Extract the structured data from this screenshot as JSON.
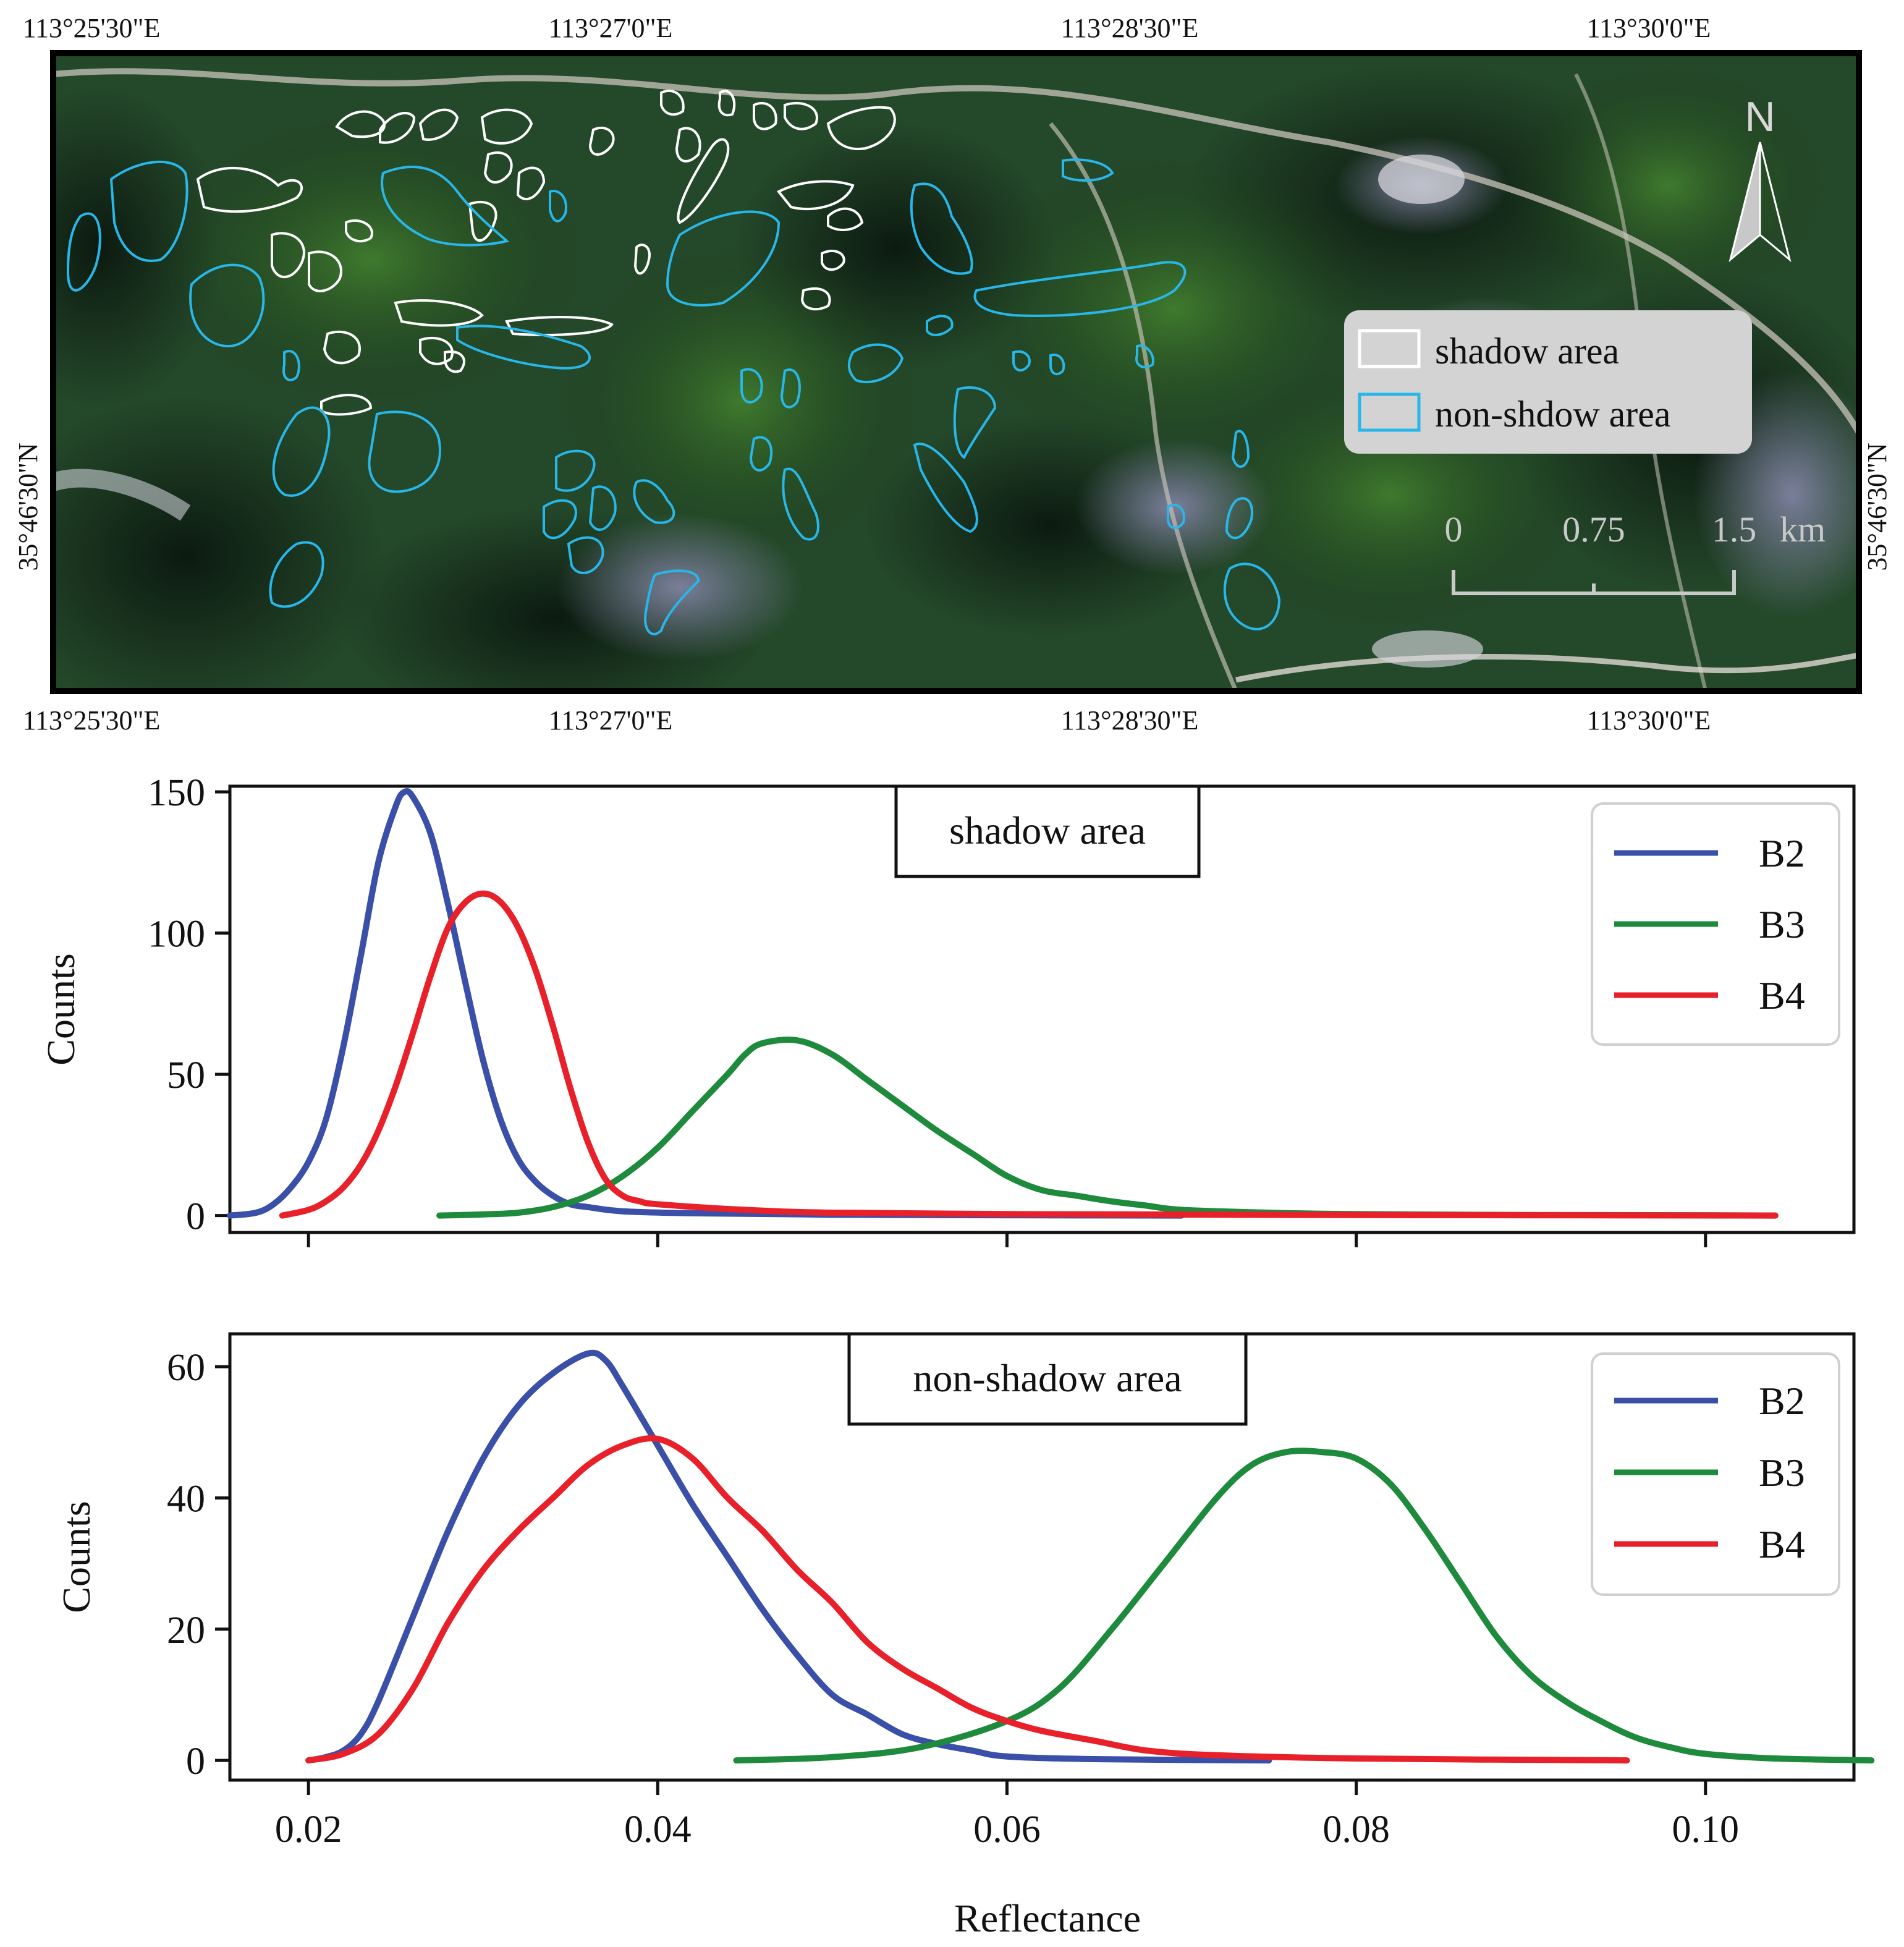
{
  "map": {
    "top_lon_labels": [
      "113°25'30\"E",
      "113°27'0\"E",
      "113°28'30\"E",
      "113°30'0\"E"
    ],
    "bottom_lon_labels": [
      "113°25'30\"E",
      "113°27'0\"E",
      "113°28'30\"E",
      "113°30'0\"E"
    ],
    "lat_label_left": "35°46'30\"N",
    "lat_label_right": "35°46'30\"N",
    "north_arrow_label": "N",
    "legend": [
      {
        "label": "shadow area",
        "color": "#ffffff"
      },
      {
        "label": "non-shdow area",
        "color": "#29b6e8"
      }
    ],
    "scalebar": {
      "labels": [
        "0",
        "0.75",
        "1.5"
      ],
      "unit": "km"
    }
  },
  "colors": {
    "B2": "#3a4fa8",
    "B3": "#1e8a3c",
    "B4": "#e8202a"
  },
  "chart_data": [
    {
      "type": "line",
      "title": "shadow area",
      "xlabel": "",
      "ylabel": "Counts",
      "xlim": [
        0.0155,
        0.1085
      ],
      "ylim": [
        -6,
        152
      ],
      "xticks": [
        0.02,
        0.04,
        0.06,
        0.08,
        0.1
      ],
      "yticks": [
        0,
        50,
        100,
        150
      ],
      "legend_position": "top-right",
      "series": [
        {
          "name": "B2",
          "color": "#3a4fa8",
          "points": [
            [
              0.0155,
              0
            ],
            [
              0.017,
              1
            ],
            [
              0.018,
              4
            ],
            [
              0.019,
              10
            ],
            [
              0.02,
              19
            ],
            [
              0.021,
              34
            ],
            [
              0.022,
              60
            ],
            [
              0.023,
              92
            ],
            [
              0.024,
              125
            ],
            [
              0.025,
              145
            ],
            [
              0.0255,
              150
            ],
            [
              0.026,
              148
            ],
            [
              0.027,
              135
            ],
            [
              0.028,
              110
            ],
            [
              0.029,
              82
            ],
            [
              0.03,
              55
            ],
            [
              0.031,
              34
            ],
            [
              0.032,
              20
            ],
            [
              0.033,
              12
            ],
            [
              0.034,
              7
            ],
            [
              0.035,
              4
            ],
            [
              0.036,
              3
            ],
            [
              0.038,
              1.5
            ],
            [
              0.042,
              0.8
            ],
            [
              0.05,
              0.3
            ],
            [
              0.06,
              0.1
            ],
            [
              0.07,
              0
            ]
          ]
        },
        {
          "name": "B3",
          "color": "#1e8a3c",
          "points": [
            [
              0.0275,
              0
            ],
            [
              0.03,
              0.4
            ],
            [
              0.032,
              1
            ],
            [
              0.034,
              3
            ],
            [
              0.036,
              7
            ],
            [
              0.038,
              14
            ],
            [
              0.04,
              24
            ],
            [
              0.042,
              37
            ],
            [
              0.044,
              50
            ],
            [
              0.045,
              57
            ],
            [
              0.046,
              61
            ],
            [
              0.048,
              62
            ],
            [
              0.05,
              57
            ],
            [
              0.052,
              48
            ],
            [
              0.054,
              39
            ],
            [
              0.056,
              30
            ],
            [
              0.058,
              22
            ],
            [
              0.06,
              14
            ],
            [
              0.062,
              9
            ],
            [
              0.064,
              7
            ],
            [
              0.066,
              5
            ],
            [
              0.068,
              3.5
            ],
            [
              0.07,
              2
            ],
            [
              0.075,
              1
            ],
            [
              0.08,
              0.5
            ],
            [
              0.09,
              0.2
            ],
            [
              0.1,
              0.1
            ],
            [
              0.104,
              0
            ]
          ]
        },
        {
          "name": "B4",
          "color": "#e8202a",
          "points": [
            [
              0.0185,
              0
            ],
            [
              0.02,
              2
            ],
            [
              0.021,
              5
            ],
            [
              0.022,
              10
            ],
            [
              0.023,
              18
            ],
            [
              0.024,
              30
            ],
            [
              0.025,
              46
            ],
            [
              0.026,
              65
            ],
            [
              0.027,
              85
            ],
            [
              0.028,
              102
            ],
            [
              0.029,
              111
            ],
            [
              0.03,
              114
            ],
            [
              0.031,
              111
            ],
            [
              0.032,
              102
            ],
            [
              0.033,
              87
            ],
            [
              0.034,
              67
            ],
            [
              0.035,
              45
            ],
            [
              0.036,
              26
            ],
            [
              0.037,
              13
            ],
            [
              0.038,
              7
            ],
            [
              0.039,
              5
            ],
            [
              0.04,
              4
            ],
            [
              0.045,
              2
            ],
            [
              0.05,
              1
            ],
            [
              0.06,
              0.5
            ],
            [
              0.08,
              0.2
            ],
            [
              0.104,
              0
            ]
          ]
        }
      ]
    },
    {
      "type": "line",
      "title": "non-shadow area",
      "xlabel": "Reflectance",
      "ylabel": "Counts",
      "xlim": [
        0.0155,
        0.1085
      ],
      "ylim": [
        -3,
        65
      ],
      "xticks": [
        0.02,
        0.04,
        0.06,
        0.08,
        0.1
      ],
      "yticks": [
        0,
        20,
        40,
        60
      ],
      "legend_position": "top-right",
      "series": [
        {
          "name": "B2",
          "color": "#3a4fa8",
          "points": [
            [
              0.02,
              0
            ],
            [
              0.021,
              0.5
            ],
            [
              0.022,
              1.5
            ],
            [
              0.023,
              4
            ],
            [
              0.024,
              9
            ],
            [
              0.026,
              22
            ],
            [
              0.028,
              35
            ],
            [
              0.03,
              46
            ],
            [
              0.032,
              54
            ],
            [
              0.034,
              59
            ],
            [
              0.036,
              62
            ],
            [
              0.037,
              61
            ],
            [
              0.038,
              57
            ],
            [
              0.04,
              48
            ],
            [
              0.042,
              39
            ],
            [
              0.044,
              31
            ],
            [
              0.046,
              23
            ],
            [
              0.048,
              16
            ],
            [
              0.05,
              10
            ],
            [
              0.052,
              7
            ],
            [
              0.054,
              4
            ],
            [
              0.056,
              2.5
            ],
            [
              0.058,
              1.5
            ],
            [
              0.06,
              0.6
            ],
            [
              0.065,
              0.2
            ],
            [
              0.075,
              0
            ]
          ]
        },
        {
          "name": "B3",
          "color": "#1e8a3c",
          "points": [
            [
              0.0445,
              0
            ],
            [
              0.05,
              0.5
            ],
            [
              0.055,
              2
            ],
            [
              0.06,
              6
            ],
            [
              0.063,
              11
            ],
            [
              0.066,
              20
            ],
            [
              0.069,
              30
            ],
            [
              0.072,
              40
            ],
            [
              0.074,
              45
            ],
            [
              0.076,
              47
            ],
            [
              0.078,
              47
            ],
            [
              0.08,
              46
            ],
            [
              0.082,
              42
            ],
            [
              0.084,
              35
            ],
            [
              0.086,
              27
            ],
            [
              0.088,
              19
            ],
            [
              0.09,
              13
            ],
            [
              0.092,
              9
            ],
            [
              0.094,
              6
            ],
            [
              0.096,
              3.5
            ],
            [
              0.098,
              2
            ],
            [
              0.1,
              1
            ],
            [
              0.104,
              0.3
            ],
            [
              0.1095,
              0
            ]
          ]
        },
        {
          "name": "B4",
          "color": "#e8202a",
          "points": [
            [
              0.02,
              0
            ],
            [
              0.022,
              1
            ],
            [
              0.024,
              4
            ],
            [
              0.026,
              11
            ],
            [
              0.028,
              21
            ],
            [
              0.03,
              29
            ],
            [
              0.032,
              35
            ],
            [
              0.034,
              40
            ],
            [
              0.036,
              45
            ],
            [
              0.038,
              48
            ],
            [
              0.04,
              49
            ],
            [
              0.042,
              46
            ],
            [
              0.044,
              40
            ],
            [
              0.046,
              35
            ],
            [
              0.048,
              29
            ],
            [
              0.05,
              24
            ],
            [
              0.052,
              18
            ],
            [
              0.054,
              14
            ],
            [
              0.056,
              11
            ],
            [
              0.058,
              8
            ],
            [
              0.06,
              6
            ],
            [
              0.062,
              4.5
            ],
            [
              0.065,
              3
            ],
            [
              0.068,
              1.5
            ],
            [
              0.072,
              0.8
            ],
            [
              0.08,
              0.3
            ],
            [
              0.0955,
              0
            ]
          ]
        }
      ]
    }
  ]
}
